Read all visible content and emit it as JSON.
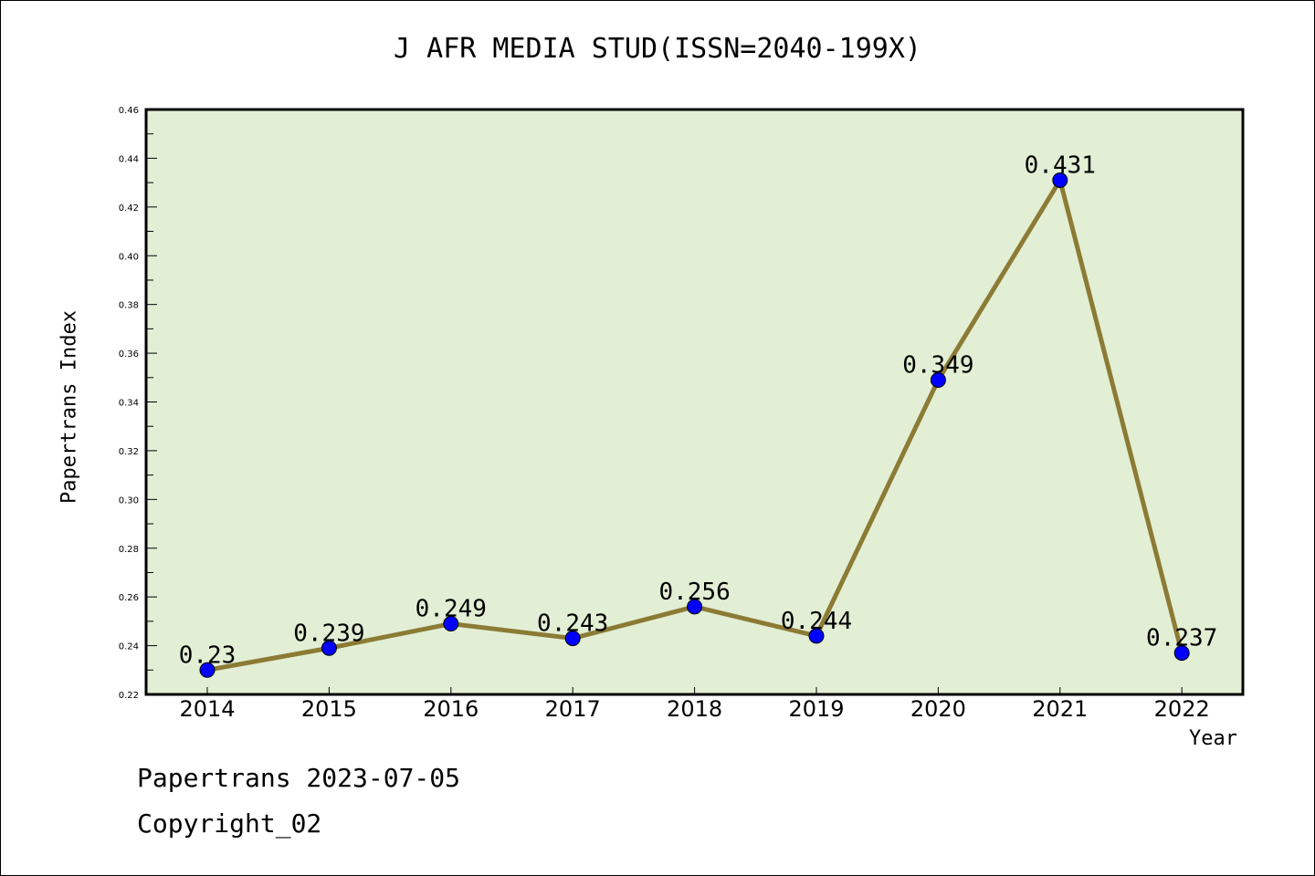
{
  "chart_data": {
    "type": "line",
    "title": "J AFR MEDIA STUD(ISSN=2040-199X)",
    "xlabel": "Year",
    "ylabel": "Papertrans Index",
    "x": [
      "2014",
      "2015",
      "2016",
      "2017",
      "2018",
      "2019",
      "2020",
      "2021",
      "2022"
    ],
    "series": [
      {
        "name": "Papertrans Index",
        "values": [
          0.23,
          0.239,
          0.249,
          0.243,
          0.256,
          0.244,
          0.349,
          0.431,
          0.237
        ],
        "labels": [
          "0.23",
          "0.239",
          "0.249",
          "0.243",
          "0.256",
          "0.244",
          "0.349",
          "0.431",
          "0.237"
        ]
      }
    ],
    "ylim": [
      0.22,
      0.46
    ],
    "yticks": [
      "0.22",
      "0.24",
      "0.26",
      "0.28",
      "0.30",
      "0.32",
      "0.34",
      "0.36",
      "0.38",
      "0.40",
      "0.42",
      "0.44",
      "0.46"
    ],
    "grid": false,
    "colors": {
      "plot_bg": "#e2efd5",
      "line": "#8c7b35",
      "marker": "#0000ff"
    }
  },
  "footer": {
    "line1": "Papertrans 2023-07-05",
    "line2": "Copyright_02"
  }
}
